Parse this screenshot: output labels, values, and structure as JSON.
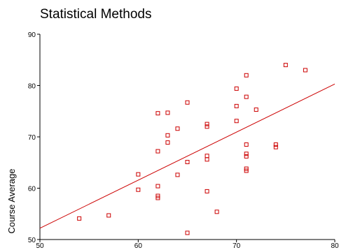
{
  "chart_data": {
    "type": "scatter",
    "title": "Statistical Methods",
    "xlabel": "",
    "ylabel": "Course Average",
    "xlim": [
      50,
      80
    ],
    "ylim": [
      50,
      90
    ],
    "x_ticks": [
      50,
      60,
      70,
      80
    ],
    "y_ticks": [
      50,
      60,
      70,
      80,
      90
    ],
    "grid": false,
    "marker": "hollow-square",
    "point_color": "#cc0000",
    "line_color": "#cc0000",
    "points": [
      {
        "x": 54,
        "y": 54.1
      },
      {
        "x": 57,
        "y": 54.7
      },
      {
        "x": 60,
        "y": 62.7
      },
      {
        "x": 60,
        "y": 59.7
      },
      {
        "x": 62,
        "y": 74.6
      },
      {
        "x": 62,
        "y": 67.2
      },
      {
        "x": 62,
        "y": 60.4
      },
      {
        "x": 62,
        "y": 58.5
      },
      {
        "x": 62,
        "y": 58.1
      },
      {
        "x": 63,
        "y": 74.7
      },
      {
        "x": 63,
        "y": 70.3
      },
      {
        "x": 63,
        "y": 68.9
      },
      {
        "x": 64,
        "y": 71.6
      },
      {
        "x": 64,
        "y": 62.6
      },
      {
        "x": 65,
        "y": 76.7
      },
      {
        "x": 65,
        "y": 65.1
      },
      {
        "x": 65,
        "y": 51.3
      },
      {
        "x": 67,
        "y": 72.5
      },
      {
        "x": 67,
        "y": 72.0
      },
      {
        "x": 67,
        "y": 66.3
      },
      {
        "x": 67,
        "y": 65.6
      },
      {
        "x": 67,
        "y": 59.4
      },
      {
        "x": 68,
        "y": 55.4
      },
      {
        "x": 70,
        "y": 79.4
      },
      {
        "x": 70,
        "y": 76.0
      },
      {
        "x": 70,
        "y": 73.1
      },
      {
        "x": 71,
        "y": 82.0
      },
      {
        "x": 71,
        "y": 77.8
      },
      {
        "x": 71,
        "y": 68.5
      },
      {
        "x": 71,
        "y": 66.7
      },
      {
        "x": 71,
        "y": 66.2
      },
      {
        "x": 71,
        "y": 63.8
      },
      {
        "x": 71,
        "y": 63.4
      },
      {
        "x": 72,
        "y": 75.3
      },
      {
        "x": 74,
        "y": 68.5
      },
      {
        "x": 74,
        "y": 68.0
      },
      {
        "x": 75,
        "y": 84.0
      },
      {
        "x": 77,
        "y": 83.0
      }
    ],
    "regression_line": {
      "x": [
        50,
        80
      ],
      "y": [
        52.2,
        80.3
      ]
    }
  }
}
